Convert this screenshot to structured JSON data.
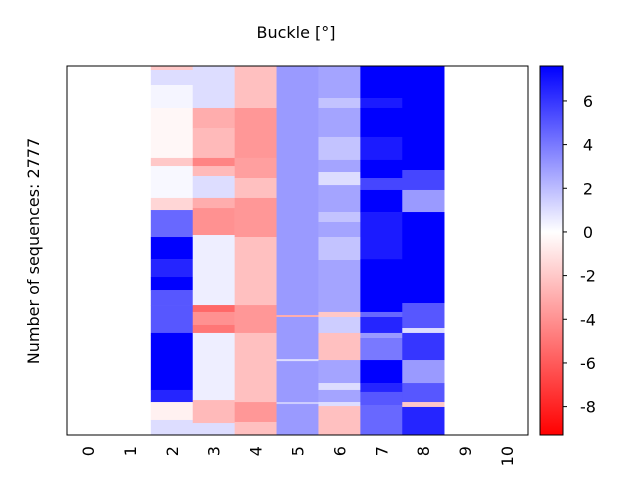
{
  "chart_data": {
    "type": "heatmap",
    "title": "Buckle [°]",
    "ylabel": "Number of sequences: 2777",
    "xlabel": "",
    "n_rows": 2777,
    "x_categories": [
      "0",
      "1",
      "2",
      "3",
      "4",
      "5",
      "6",
      "7",
      "8",
      "9",
      "10"
    ],
    "colorbar": {
      "range": [
        -9.3,
        7.6
      ],
      "ticks": [
        6,
        4,
        2,
        0,
        -2,
        -4,
        -6,
        -8
      ],
      "tick_labels": [
        "6",
        "4",
        "2",
        "0",
        "-2",
        "-4",
        "-6",
        "-8"
      ],
      "colors": {
        "min": "#ff0000",
        "mid": "#ffffff",
        "max": "#0000ff"
      }
    },
    "columns": [
      {
        "x": 2,
        "segments": [
          [
            0,
            30,
            -2
          ],
          [
            30,
            143,
            1
          ],
          [
            143,
            316,
            0.3
          ],
          [
            316,
            692,
            -0.3
          ],
          [
            692,
            753,
            -2
          ],
          [
            753,
            993,
            0.2
          ],
          [
            993,
            1084,
            -1.5
          ],
          [
            1084,
            1287,
            4.5
          ],
          [
            1287,
            1453,
            7.6
          ],
          [
            1453,
            1588,
            6.5
          ],
          [
            1588,
            1686,
            7.6
          ],
          [
            1686,
            1799,
            5
          ],
          [
            1799,
            2009,
            5
          ],
          [
            2009,
            2024,
            7.6
          ],
          [
            2024,
            2438,
            7.6
          ],
          [
            2438,
            2529,
            6.5
          ],
          [
            2529,
            2664,
            -0.5
          ],
          [
            2664,
            2777,
            1
          ]
        ]
      },
      {
        "x": 3,
        "segments": [
          [
            0,
            316,
            1
          ],
          [
            316,
            467,
            -3
          ],
          [
            467,
            692,
            -2.5
          ],
          [
            692,
            753,
            -4.5
          ],
          [
            753,
            828,
            -2.5
          ],
          [
            828,
            993,
            1
          ],
          [
            993,
            1069,
            -3
          ],
          [
            1069,
            1272,
            -4
          ],
          [
            1272,
            1799,
            0.5
          ],
          [
            1799,
            1851,
            -5.5
          ],
          [
            1851,
            1949,
            -4
          ],
          [
            1949,
            2009,
            -5
          ],
          [
            2009,
            2514,
            0.5
          ],
          [
            2514,
            2687,
            -2.5
          ],
          [
            2687,
            2777,
            1
          ]
        ]
      },
      {
        "x": 4,
        "segments": [
          [
            0,
            316,
            -2.3
          ],
          [
            316,
            692,
            -3.8
          ],
          [
            692,
            843,
            -3.5
          ],
          [
            843,
            993,
            -2.3
          ],
          [
            993,
            1287,
            -3.8
          ],
          [
            1287,
            1799,
            -2.3
          ],
          [
            1799,
            2009,
            -3.8
          ],
          [
            2009,
            2529,
            -2.3
          ],
          [
            2529,
            2679,
            -3.8
          ],
          [
            2679,
            2777,
            -2.3
          ]
        ]
      },
      {
        "x": 5,
        "segments": [
          [
            0,
            1874,
            3
          ],
          [
            1874,
            1889,
            -3
          ],
          [
            1889,
            2206,
            3
          ],
          [
            2206,
            2221,
            1
          ],
          [
            2221,
            2529,
            3
          ],
          [
            2529,
            2544,
            1.5
          ],
          [
            2544,
            2777,
            3
          ]
        ]
      },
      {
        "x": 6,
        "segments": [
          [
            0,
            241,
            2.7
          ],
          [
            241,
            316,
            1.8
          ],
          [
            316,
            534,
            2.7
          ],
          [
            534,
            707,
            1.8
          ],
          [
            707,
            798,
            2.7
          ],
          [
            798,
            896,
            1
          ],
          [
            896,
            1099,
            2.7
          ],
          [
            1099,
            1174,
            1.8
          ],
          [
            1174,
            1287,
            2.7
          ],
          [
            1287,
            1460,
            1.8
          ],
          [
            1460,
            1851,
            2.7
          ],
          [
            1851,
            1889,
            -2
          ],
          [
            1889,
            2009,
            1.5
          ],
          [
            2009,
            2213,
            -2.3
          ],
          [
            2213,
            2386,
            2.7
          ],
          [
            2386,
            2438,
            1
          ],
          [
            2438,
            2529,
            2.7
          ],
          [
            2529,
            2559,
            1
          ],
          [
            2559,
            2777,
            -2.3
          ]
        ]
      },
      {
        "x": 7,
        "segments": [
          [
            0,
            241,
            7.6
          ],
          [
            241,
            316,
            6.8
          ],
          [
            316,
            534,
            7.6
          ],
          [
            534,
            707,
            6.8
          ],
          [
            707,
            843,
            7.6
          ],
          [
            843,
            933,
            5.5
          ],
          [
            933,
            1099,
            7.6
          ],
          [
            1099,
            1453,
            6.8
          ],
          [
            1453,
            1851,
            7.6
          ],
          [
            1851,
            1889,
            4.5
          ],
          [
            1889,
            2009,
            6.5
          ],
          [
            2009,
            2047,
            3
          ],
          [
            2047,
            2213,
            4
          ],
          [
            2213,
            2386,
            7.6
          ],
          [
            2386,
            2453,
            6.5
          ],
          [
            2453,
            2551,
            5
          ],
          [
            2551,
            2777,
            4.5
          ]
        ]
      },
      {
        "x": 8,
        "segments": [
          [
            0,
            783,
            7.6
          ],
          [
            783,
            933,
            5.5
          ],
          [
            933,
            1099,
            3
          ],
          [
            1099,
            1784,
            7.6
          ],
          [
            1784,
            1972,
            5
          ],
          [
            1972,
            2009,
            1
          ],
          [
            2009,
            2213,
            6
          ],
          [
            2213,
            2386,
            3
          ],
          [
            2386,
            2529,
            5
          ],
          [
            2529,
            2566,
            -2
          ],
          [
            2566,
            2777,
            6.5
          ]
        ]
      }
    ]
  }
}
